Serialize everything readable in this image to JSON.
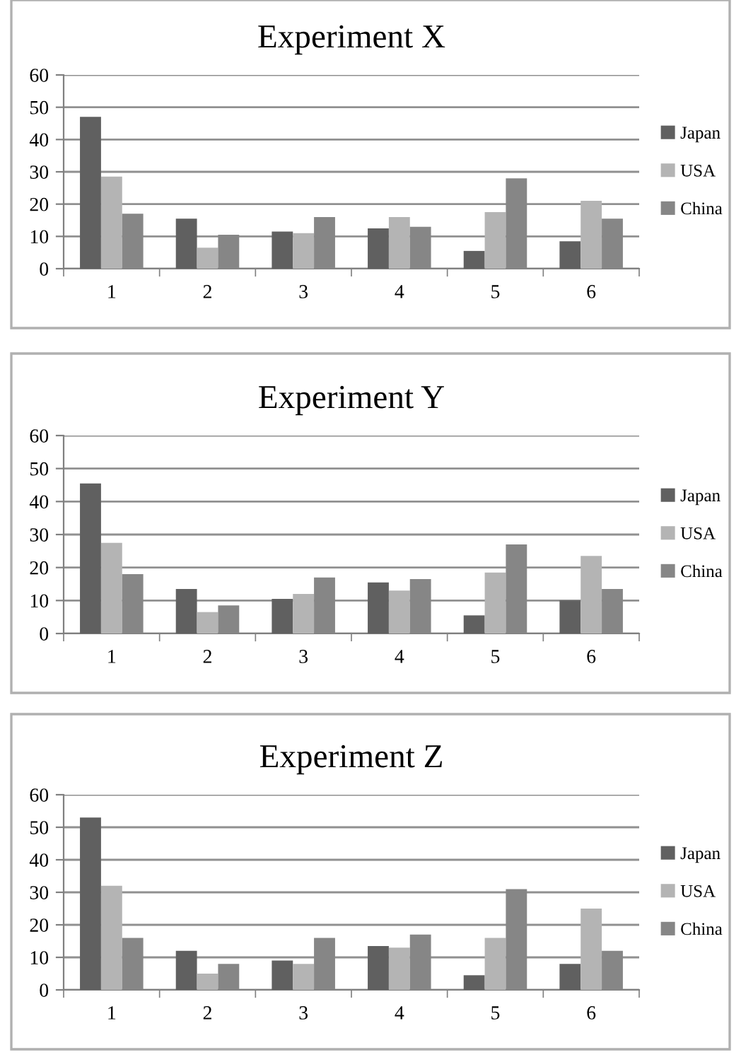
{
  "chart_data": [
    {
      "type": "bar",
      "title": "Experiment X",
      "categories": [
        "1",
        "2",
        "3",
        "4",
        "5",
        "6"
      ],
      "ylim": [
        0,
        60
      ],
      "yticks": [
        0,
        10,
        20,
        30,
        40,
        50,
        60
      ],
      "grid": "y",
      "legend": "right",
      "series": [
        {
          "name": "Japan",
          "color": "#606060",
          "values": [
            47,
            15.5,
            11.5,
            12.5,
            5.5,
            8.5
          ]
        },
        {
          "name": "USA",
          "color": "#b4b4b4",
          "values": [
            28.5,
            6.5,
            11,
            16,
            17.5,
            21
          ]
        },
        {
          "name": "China",
          "color": "#868686",
          "values": [
            17,
            10.5,
            16,
            13,
            28,
            15.5
          ]
        }
      ]
    },
    {
      "type": "bar",
      "title": "Experiment Y",
      "categories": [
        "1",
        "2",
        "3",
        "4",
        "5",
        "6"
      ],
      "ylim": [
        0,
        60
      ],
      "yticks": [
        0,
        10,
        20,
        30,
        40,
        50,
        60
      ],
      "grid": "y",
      "legend": "right",
      "series": [
        {
          "name": "Japan",
          "color": "#606060",
          "values": [
            45.5,
            13.5,
            10.5,
            15.5,
            5.5,
            10
          ]
        },
        {
          "name": "USA",
          "color": "#b4b4b4",
          "values": [
            27.5,
            6.5,
            12,
            13,
            18.5,
            23.5
          ]
        },
        {
          "name": "China",
          "color": "#868686",
          "values": [
            18,
            8.5,
            17,
            16.5,
            27,
            13.5
          ]
        }
      ]
    },
    {
      "type": "bar",
      "title": "Experiment Z",
      "categories": [
        "1",
        "2",
        "3",
        "4",
        "5",
        "6"
      ],
      "ylim": [
        0,
        60
      ],
      "yticks": [
        0,
        10,
        20,
        30,
        40,
        50,
        60
      ],
      "grid": "y",
      "legend": "right",
      "series": [
        {
          "name": "Japan",
          "color": "#606060",
          "values": [
            53,
            12,
            9,
            13.5,
            4.5,
            8
          ]
        },
        {
          "name": "USA",
          "color": "#b4b4b4",
          "values": [
            32,
            5,
            8,
            13,
            16,
            25
          ]
        },
        {
          "name": "China",
          "color": "#868686",
          "values": [
            16,
            8,
            16,
            17,
            31,
            12
          ]
        }
      ]
    }
  ]
}
